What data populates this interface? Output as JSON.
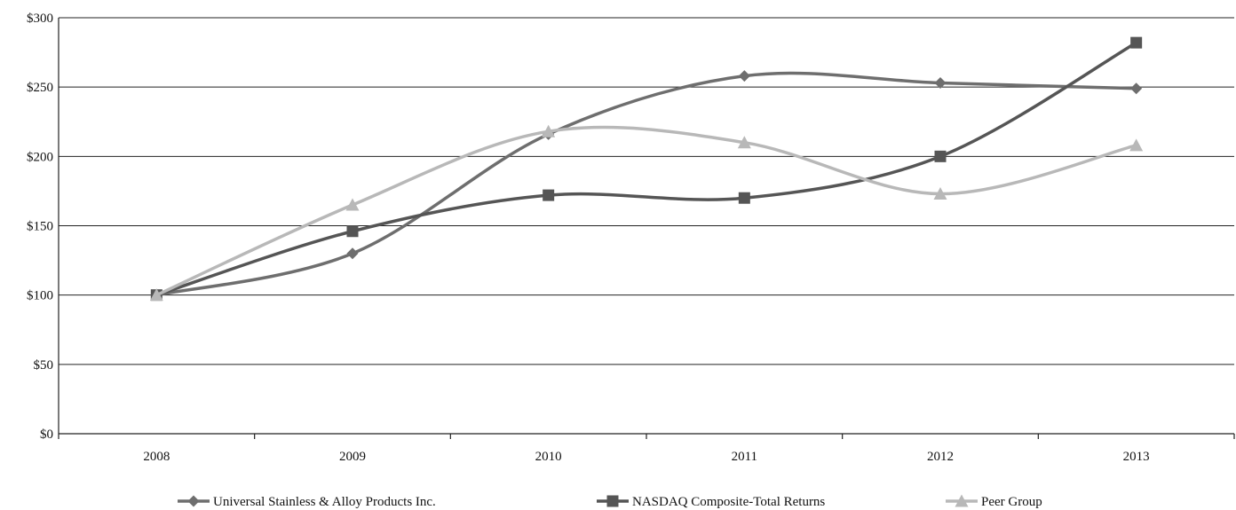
{
  "chart_data": {
    "type": "line",
    "title": "",
    "xlabel": "",
    "ylabel": "",
    "categories": [
      "2008",
      "2009",
      "2010",
      "2011",
      "2012",
      "2013"
    ],
    "ylim": [
      0,
      300
    ],
    "y_ticks": [
      0,
      50,
      100,
      150,
      200,
      250,
      300
    ],
    "y_tick_labels": [
      "$0",
      "$50",
      "$100",
      "$150",
      "$200",
      "$250",
      "$300"
    ],
    "grid": true,
    "smooth": true,
    "legend_position": "bottom",
    "series": [
      {
        "name": "Universal Stainless & Alloy Products Inc.",
        "values": [
          100,
          130,
          216,
          258,
          253,
          249
        ],
        "color": "#6e6e6e",
        "marker": "diamond"
      },
      {
        "name": "NASDAQ Composite-Total Returns",
        "values": [
          100,
          146,
          172,
          170,
          200,
          282
        ],
        "color": "#555555",
        "marker": "square"
      },
      {
        "name": "Peer Group",
        "values": [
          100,
          165,
          218,
          210,
          173,
          208
        ],
        "color": "#b8b8b8",
        "marker": "triangle"
      }
    ]
  }
}
